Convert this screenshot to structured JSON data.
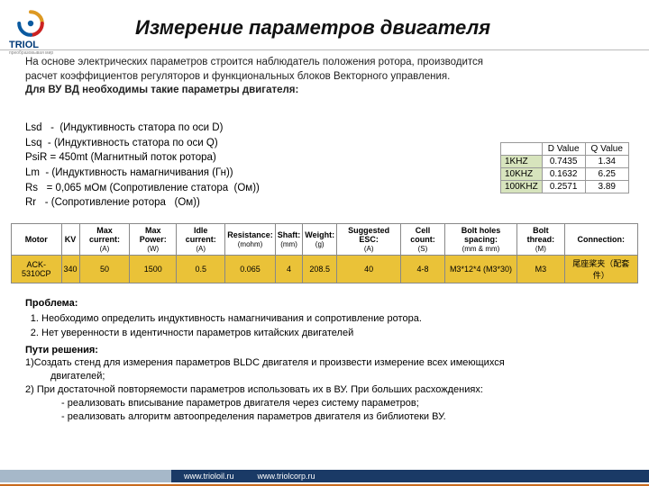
{
  "logo": {
    "brand": "TRIOL",
    "sub": "преобразовывая мир"
  },
  "title": "Измерение параметров двигателя",
  "intro": {
    "p1": "На основе электрических параметров строится наблюдатель положения ротора, производится расчет коэффициентов регуляторов и функциональных блоков Векторного управления.",
    "bold": "Для ВУ ВД необходимы такие параметры двигателя:"
  },
  "params": [
    "Lsd   -  (Индуктивность статора по оси D)",
    "Lsq  - (Индуктивность статора по оси Q)",
    "PsiR = 450mt (Магнитный поток ротора)",
    "Lm  - (Индуктивность намагничивания (Гн))",
    "Rs   = 0,065 мОм (Сопротивление статора  (Ом))",
    "Rr   - (Сопротивление ротора   (Ом))"
  ],
  "dqtable": {
    "headers": [
      "",
      "D Value",
      "Q Value"
    ],
    "rows": [
      {
        "lbl": "1KHZ",
        "d": "0.7435",
        "q": "1.34"
      },
      {
        "lbl": "10KHZ",
        "d": "0.1632",
        "q": "6.25"
      },
      {
        "lbl": "100KHZ",
        "d": "0.2571",
        "q": "3.89"
      }
    ],
    "colors": {
      "lbl_bg": "#d7e4bd",
      "border": "#999999"
    }
  },
  "motortable": {
    "headers": [
      {
        "t1": "Motor",
        "t2": ""
      },
      {
        "t1": "KV",
        "t2": ""
      },
      {
        "t1": "Max current:",
        "t2": "(A)"
      },
      {
        "t1": "Max Power:",
        "t2": "(W)"
      },
      {
        "t1": "Idle current:",
        "t2": "(A)"
      },
      {
        "t1": "Resistance:",
        "t2": "(mohm)"
      },
      {
        "t1": "Shaft:",
        "t2": "(mm)"
      },
      {
        "t1": "Weight:",
        "t2": "(g)"
      },
      {
        "t1": "Suggested ESC:",
        "t2": "(A)"
      },
      {
        "t1": "Cell count:",
        "t2": "(S)"
      },
      {
        "t1": "Bolt holes spacing:",
        "t2": "(mm & mm)"
      },
      {
        "t1": "Bolt thread:",
        "t2": "(M)"
      },
      {
        "t1": "Connection:",
        "t2": ""
      }
    ],
    "row": [
      "ACK-5310CP",
      "340",
      "50",
      "1500",
      "0.5",
      "0.065",
      "4",
      "208.5",
      "40",
      "4-8",
      "M3*12*4 (M3*30)",
      "M3",
      "尾座桨夹（配套件）"
    ],
    "colors": {
      "row_bg": "#eac238",
      "border": "#888888"
    }
  },
  "body2": {
    "problem_h": "Проблема:",
    "problems": [
      "Необходимо определить индуктивность намагничивания и сопротивление ротора.",
      "Нет уверенности в идентичности параметров китайских двигателей"
    ],
    "solution_h": "Пути решения:",
    "sol1": "1)Создать стенд для измерения параметров BLDC двигателя и произвести измерение всех имеющихся двигателей;",
    "sol2": "2) При достаточной повторяемости параметров использовать их в ВУ. При больших расхождениях:",
    "sol2a": "- реализовать вписывание параметров двигателя через систему параметров;",
    "sol2b": "- реализовать алгоритм автоопределения параметров двигателя из библиотеки ВУ."
  },
  "footer": {
    "url1": "www.trioloil.ru",
    "url2": "www.triolcorp.ru"
  }
}
